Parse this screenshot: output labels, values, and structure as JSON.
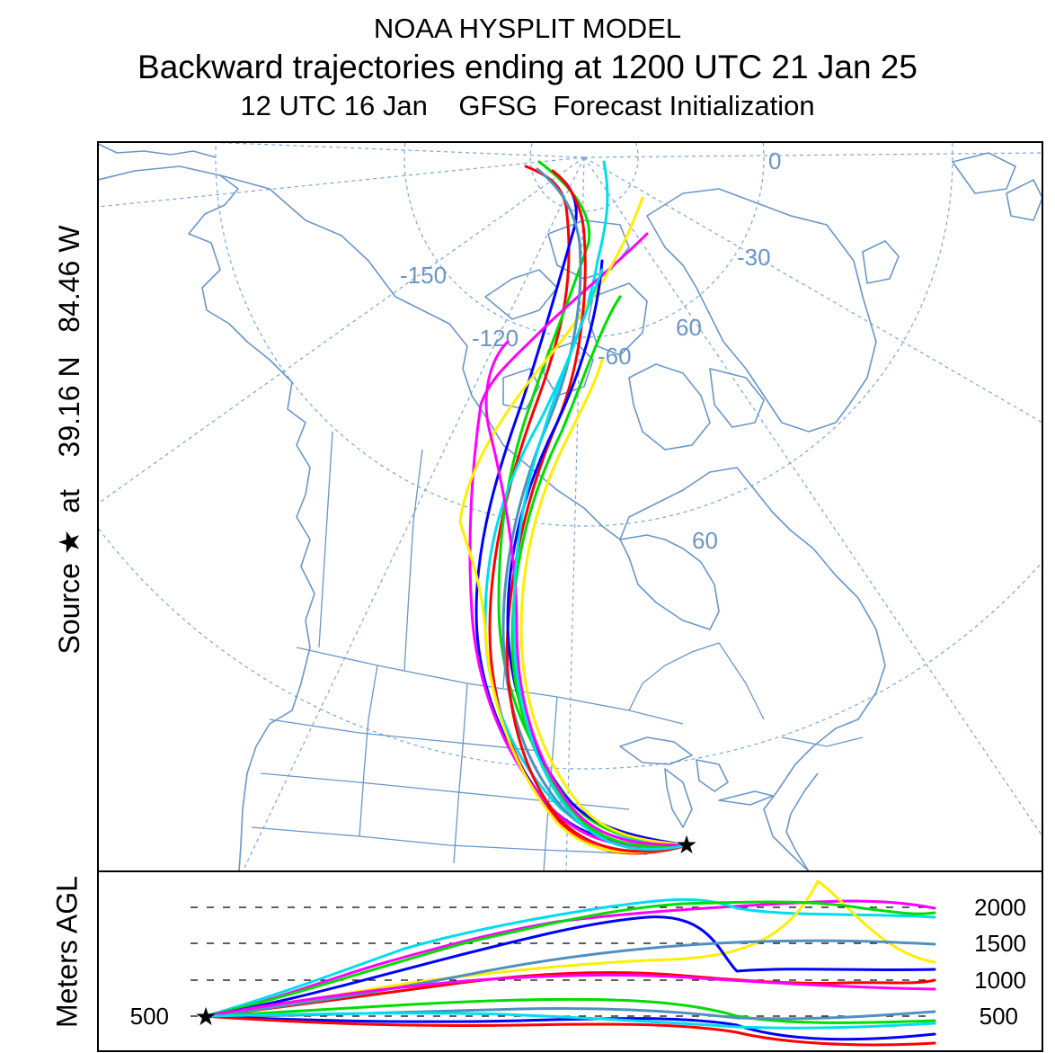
{
  "header": {
    "model": "NOAA HYSPLIT MODEL",
    "title": "Backward trajectories ending at 1200 UTC 21 Jan 25",
    "subtitle": "12 UTC 16 Jan    GFSG  Forecast Initialization"
  },
  "source_label": "Source ★  at    39.16 N   84.46 W",
  "vertical_axis_label": "Meters AGL",
  "source": {
    "lat": 39.16,
    "lon": -84.46
  },
  "map": {
    "graticule_labels": [
      "0",
      "-30",
      "-150",
      "-120",
      "-60",
      "60",
      "60"
    ],
    "colors": {
      "geography": "#6a96c8",
      "graticule": "#7aa6d8"
    }
  },
  "height_panel": {
    "start_height_label": "500",
    "ticks": [
      "2000",
      "1500",
      "1000",
      "500"
    ],
    "tick_values": [
      2000,
      1500,
      1000,
      500
    ]
  },
  "trajectory_colors": [
    "#ff0000",
    "#0000ff",
    "#00dd00",
    "#00ddee",
    "#ff00ff",
    "#ffee00",
    "#5090c0"
  ]
}
